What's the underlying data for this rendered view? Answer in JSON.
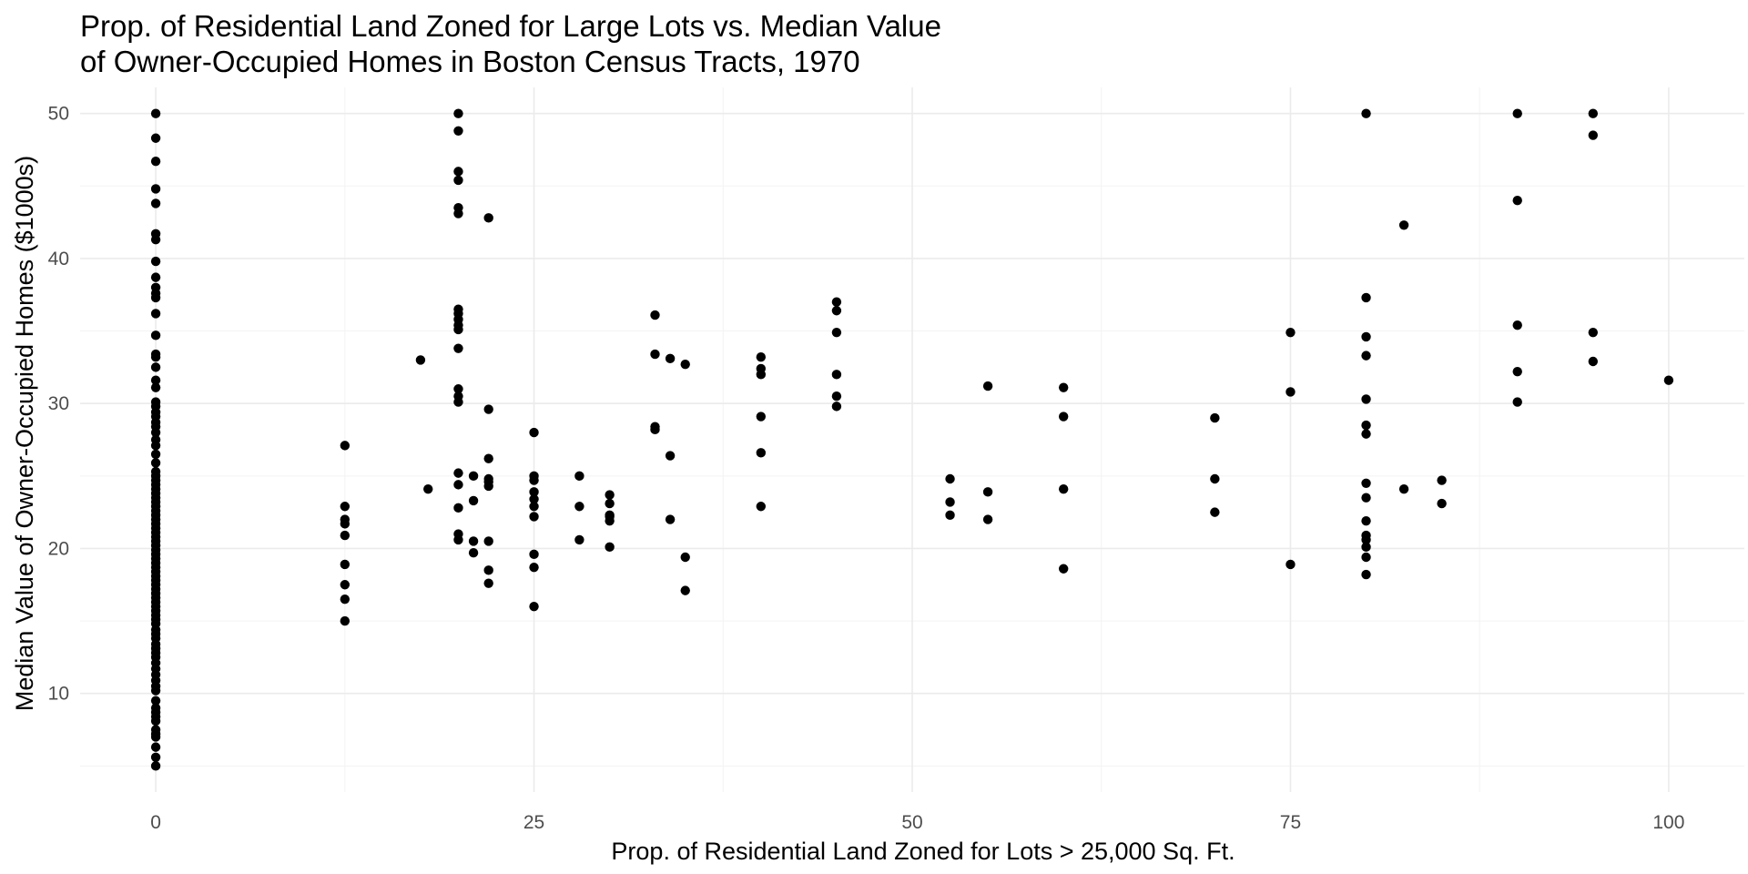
{
  "chart_data": {
    "type": "scatter",
    "title_lines": [
      "Prop. of Residential Land Zoned for Large Lots vs. Median Value",
      "of Owner-Occupied Homes in Boston Census Tracts, 1970"
    ],
    "xlabel": "Prop. of Residential Land Zoned for Lots > 25,000 Sq. Ft.",
    "ylabel": "Median Value of Owner-Occupied Homes ($1000s)",
    "xlim": [
      -5,
      105
    ],
    "ylim": [
      3.2,
      51.8
    ],
    "x_ticks": [
      0,
      25,
      50,
      75,
      100
    ],
    "y_ticks": [
      10,
      20,
      30,
      40,
      50
    ],
    "x_minor_ticks": [
      12.5,
      37.5,
      62.5,
      87.5
    ],
    "y_minor_ticks": [
      5,
      15,
      25,
      35,
      45
    ],
    "grid": true,
    "point_color": "#000000",
    "grid_color": "#ebebeb",
    "points": [
      [
        0,
        5.0
      ],
      [
        0,
        5.6
      ],
      [
        0,
        6.3
      ],
      [
        0,
        7.0
      ],
      [
        0,
        7.2
      ],
      [
        0,
        7.5
      ],
      [
        0,
        8.1
      ],
      [
        0,
        8.4
      ],
      [
        0,
        8.7
      ],
      [
        0,
        9.0
      ],
      [
        0,
        9.5
      ],
      [
        0,
        10.2
      ],
      [
        0,
        10.5
      ],
      [
        0,
        10.9
      ],
      [
        0,
        11.3
      ],
      [
        0,
        11.7
      ],
      [
        0,
        12.1
      ],
      [
        0,
        12.5
      ],
      [
        0,
        12.8
      ],
      [
        0,
        13.1
      ],
      [
        0,
        13.4
      ],
      [
        0,
        13.8
      ],
      [
        0,
        14.1
      ],
      [
        0,
        14.4
      ],
      [
        0,
        14.8
      ],
      [
        0,
        15.1
      ],
      [
        0,
        15.4
      ],
      [
        0,
        15.7
      ],
      [
        0,
        16.0
      ],
      [
        0,
        16.3
      ],
      [
        0,
        16.6
      ],
      [
        0,
        16.9
      ],
      [
        0,
        17.2
      ],
      [
        0,
        17.5
      ],
      [
        0,
        17.8
      ],
      [
        0,
        18.1
      ],
      [
        0,
        18.4
      ],
      [
        0,
        18.7
      ],
      [
        0,
        19.0
      ],
      [
        0,
        19.3
      ],
      [
        0,
        19.6
      ],
      [
        0,
        19.9
      ],
      [
        0,
        20.2
      ],
      [
        0,
        20.5
      ],
      [
        0,
        20.8
      ],
      [
        0,
        21.1
      ],
      [
        0,
        21.4
      ],
      [
        0,
        21.7
      ],
      [
        0,
        22.0
      ],
      [
        0,
        22.3
      ],
      [
        0,
        22.6
      ],
      [
        0,
        22.9
      ],
      [
        0,
        23.2
      ],
      [
        0,
        23.5
      ],
      [
        0,
        23.8
      ],
      [
        0,
        24.1
      ],
      [
        0,
        24.4
      ],
      [
        0,
        24.7
      ],
      [
        0,
        25.0
      ],
      [
        0,
        25.3
      ],
      [
        0,
        25.9
      ],
      [
        0,
        26.5
      ],
      [
        0,
        27.1
      ],
      [
        0,
        27.5
      ],
      [
        0,
        28.0
      ],
      [
        0,
        28.4
      ],
      [
        0,
        28.7
      ],
      [
        0,
        29.1
      ],
      [
        0,
        29.4
      ],
      [
        0,
        29.8
      ],
      [
        0,
        30.1
      ],
      [
        0,
        31.1
      ],
      [
        0,
        31.6
      ],
      [
        0,
        32.5
      ],
      [
        0,
        33.2
      ],
      [
        0,
        33.4
      ],
      [
        0,
        34.7
      ],
      [
        0,
        36.2
      ],
      [
        0,
        37.3
      ],
      [
        0,
        37.6
      ],
      [
        0,
        38.0
      ],
      [
        0,
        38.7
      ],
      [
        0,
        39.8
      ],
      [
        0,
        41.3
      ],
      [
        0,
        41.7
      ],
      [
        0,
        43.8
      ],
      [
        0,
        44.8
      ],
      [
        0,
        46.7
      ],
      [
        0,
        48.3
      ],
      [
        0,
        50.0
      ],
      [
        12.5,
        15.0
      ],
      [
        12.5,
        16.5
      ],
      [
        12.5,
        17.5
      ],
      [
        12.5,
        18.9
      ],
      [
        12.5,
        20.9
      ],
      [
        12.5,
        21.7
      ],
      [
        12.5,
        22.0
      ],
      [
        12.5,
        22.9
      ],
      [
        12.5,
        27.1
      ],
      [
        17.5,
        33.0
      ],
      [
        18,
        24.1
      ],
      [
        20,
        20.6
      ],
      [
        20,
        21.0
      ],
      [
        20,
        22.8
      ],
      [
        20,
        24.4
      ],
      [
        20,
        25.2
      ],
      [
        20,
        30.1
      ],
      [
        20,
        30.5
      ],
      [
        20,
        31.0
      ],
      [
        20,
        33.8
      ],
      [
        20,
        35.1
      ],
      [
        20,
        35.4
      ],
      [
        20,
        35.8
      ],
      [
        20,
        36.2
      ],
      [
        20,
        36.5
      ],
      [
        20,
        43.1
      ],
      [
        20,
        43.5
      ],
      [
        20,
        45.4
      ],
      [
        20,
        46.0
      ],
      [
        20,
        48.8
      ],
      [
        20,
        50.0
      ],
      [
        21,
        19.7
      ],
      [
        21,
        20.5
      ],
      [
        21,
        23.3
      ],
      [
        21,
        25.0
      ],
      [
        22,
        17.6
      ],
      [
        22,
        18.5
      ],
      [
        22,
        20.5
      ],
      [
        22,
        24.3
      ],
      [
        22,
        24.6
      ],
      [
        22,
        24.8
      ],
      [
        22,
        26.2
      ],
      [
        22,
        29.6
      ],
      [
        22,
        42.8
      ],
      [
        25,
        16.0
      ],
      [
        25,
        18.7
      ],
      [
        25,
        19.6
      ],
      [
        25,
        22.2
      ],
      [
        25,
        22.9
      ],
      [
        25,
        23.4
      ],
      [
        25,
        23.9
      ],
      [
        25,
        24.7
      ],
      [
        25,
        25.0
      ],
      [
        25,
        28.0
      ],
      [
        28,
        20.6
      ],
      [
        28,
        22.9
      ],
      [
        28,
        25.0
      ],
      [
        30,
        20.1
      ],
      [
        30,
        21.9
      ],
      [
        30,
        22.2
      ],
      [
        30,
        22.3
      ],
      [
        30,
        23.1
      ],
      [
        30,
        23.7
      ],
      [
        33,
        28.2
      ],
      [
        33,
        28.4
      ],
      [
        33,
        33.4
      ],
      [
        33,
        36.1
      ],
      [
        34,
        22.0
      ],
      [
        34,
        26.4
      ],
      [
        34,
        33.1
      ],
      [
        35,
        17.1
      ],
      [
        35,
        19.4
      ],
      [
        35,
        32.7
      ],
      [
        40,
        22.9
      ],
      [
        40,
        26.6
      ],
      [
        40,
        29.1
      ],
      [
        40,
        32.0
      ],
      [
        40,
        32.4
      ],
      [
        40,
        33.2
      ],
      [
        45,
        29.8
      ],
      [
        45,
        30.5
      ],
      [
        45,
        32.0
      ],
      [
        45,
        34.9
      ],
      [
        45,
        36.4
      ],
      [
        45,
        37.0
      ],
      [
        52.5,
        22.3
      ],
      [
        52.5,
        23.2
      ],
      [
        52.5,
        24.8
      ],
      [
        55,
        22.0
      ],
      [
        55,
        23.9
      ],
      [
        55,
        31.2
      ],
      [
        60,
        18.6
      ],
      [
        60,
        24.1
      ],
      [
        60,
        29.1
      ],
      [
        60,
        31.1
      ],
      [
        70,
        22.5
      ],
      [
        70,
        24.8
      ],
      [
        70,
        29.0
      ],
      [
        75,
        18.9
      ],
      [
        75,
        30.8
      ],
      [
        75,
        34.9
      ],
      [
        80,
        18.2
      ],
      [
        80,
        19.4
      ],
      [
        80,
        20.1
      ],
      [
        80,
        20.6
      ],
      [
        80,
        20.9
      ],
      [
        80,
        21.9
      ],
      [
        80,
        23.5
      ],
      [
        80,
        24.5
      ],
      [
        80,
        27.9
      ],
      [
        80,
        28.5
      ],
      [
        80,
        30.3
      ],
      [
        80,
        33.3
      ],
      [
        80,
        34.6
      ],
      [
        80,
        37.3
      ],
      [
        80,
        50.0
      ],
      [
        82.5,
        24.1
      ],
      [
        82.5,
        42.3
      ],
      [
        85,
        23.1
      ],
      [
        85,
        24.7
      ],
      [
        90,
        30.1
      ],
      [
        90,
        32.2
      ],
      [
        90,
        35.4
      ],
      [
        90,
        44.0
      ],
      [
        90,
        50.0
      ],
      [
        95,
        32.9
      ],
      [
        95,
        34.9
      ],
      [
        95,
        48.5
      ],
      [
        95,
        50.0
      ],
      [
        100,
        31.6
      ]
    ]
  }
}
